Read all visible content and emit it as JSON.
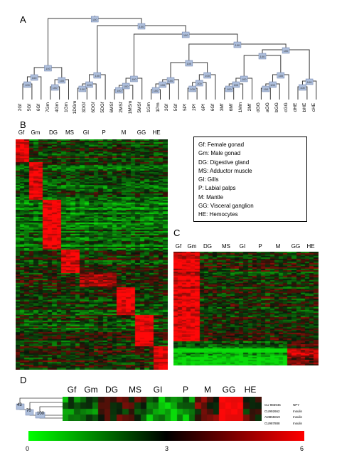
{
  "panels": {
    "a": "A",
    "b": "B",
    "c": "C",
    "d": "D"
  },
  "dendrogram": {
    "leaves": [
      "2Gf",
      "5Gf",
      "6Gf",
      "7Gm",
      "4Gm",
      "1Gm",
      "1DGm",
      "3DGf",
      "6DGf",
      "5DGf",
      "6MSf",
      "2MSf",
      "1MSm",
      "5MSf",
      "1Gm",
      "1Pm",
      "3Gf",
      "5Gf",
      "5Pf",
      "2Pf",
      "6Pf",
      "6Gf",
      "3Mf",
      "6Mf",
      "1Mm",
      "2Mf",
      "dGG",
      "aGG",
      "bGG",
      "cGG",
      "dHE",
      "bHE",
      "cHE"
    ],
    "bootstrap_label": "100"
  },
  "tissue_headers": [
    "Gf",
    "Gm",
    "DG",
    "MS",
    "GI",
    "P",
    "M",
    "GG",
    "HE"
  ],
  "legend": [
    "Gf: Female gonad",
    "Gm: Male gonad",
    "DG: Digestive gland",
    "MS: Adductor muscle",
    "GI: Gills",
    "P: Labial palps",
    "M: Mantle",
    "GG: Visceral ganglion",
    "HE: Hemocytes"
  ],
  "panel_d": {
    "node_labels": [
      "43",
      "70",
      "100"
    ],
    "genes": [
      {
        "id": "CU 983945",
        "name": "NPY"
      },
      {
        "id": "CU992662",
        "name": "Insulin"
      },
      {
        "id": "AM855819",
        "name": "Insulin"
      },
      {
        "id": "CU987888",
        "name": "Insulin"
      }
    ]
  },
  "color_scale": {
    "min": "0",
    "mid": "3",
    "max": "6",
    "low": "#00ff00",
    "center": "#000000",
    "high": "#ff0000"
  }
}
